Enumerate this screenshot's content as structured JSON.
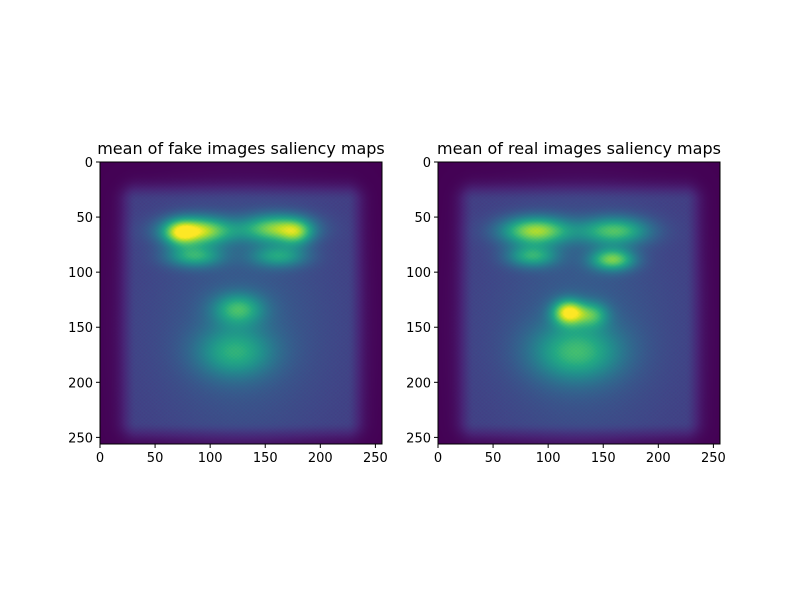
{
  "chart_data": [
    {
      "type": "heatmap",
      "title": "mean of fake images saliency maps",
      "colormap": "viridis",
      "xlim": [
        0,
        256
      ],
      "ylim": [
        256,
        0
      ],
      "xticks": [
        0,
        50,
        100,
        150,
        200,
        250
      ],
      "yticks": [
        0,
        50,
        100,
        150,
        200,
        250
      ],
      "value_range": [
        0,
        1
      ],
      "grid": false,
      "background_level": 0.18,
      "blobs": [
        {
          "x": 88,
          "y": 62,
          "sx": 22,
          "sy": 9,
          "v": 0.7
        },
        {
          "x": 72,
          "y": 64,
          "sx": 10,
          "sy": 8,
          "v": 0.35
        },
        {
          "x": 160,
          "y": 60,
          "sx": 22,
          "sy": 9,
          "v": 0.6
        },
        {
          "x": 178,
          "y": 64,
          "sx": 10,
          "sy": 8,
          "v": 0.3
        },
        {
          "x": 85,
          "y": 85,
          "sx": 18,
          "sy": 7,
          "v": 0.4
        },
        {
          "x": 162,
          "y": 85,
          "sx": 18,
          "sy": 7,
          "v": 0.35
        },
        {
          "x": 125,
          "y": 133,
          "sx": 16,
          "sy": 10,
          "v": 0.4
        },
        {
          "x": 122,
          "y": 172,
          "sx": 24,
          "sy": 16,
          "v": 0.35
        },
        {
          "x": 128,
          "y": 150,
          "sx": 55,
          "sy": 70,
          "v": 0.12
        }
      ]
    },
    {
      "type": "heatmap",
      "title": "mean of real images saliency maps",
      "colormap": "viridis",
      "xlim": [
        0,
        256
      ],
      "ylim": [
        256,
        0
      ],
      "xticks": [
        0,
        50,
        100,
        150,
        200,
        250
      ],
      "yticks": [
        0,
        50,
        100,
        150,
        200,
        250
      ],
      "value_range": [
        0,
        1
      ],
      "grid": false,
      "background_level": 0.18,
      "blobs": [
        {
          "x": 88,
          "y": 62,
          "sx": 22,
          "sy": 9,
          "v": 0.65
        },
        {
          "x": 160,
          "y": 62,
          "sx": 22,
          "sy": 9,
          "v": 0.5
        },
        {
          "x": 85,
          "y": 85,
          "sx": 16,
          "sy": 7,
          "v": 0.4
        },
        {
          "x": 158,
          "y": 88,
          "sx": 14,
          "sy": 7,
          "v": 0.55
        },
        {
          "x": 118,
          "y": 136,
          "sx": 10,
          "sy": 8,
          "v": 0.7
        },
        {
          "x": 140,
          "y": 138,
          "sx": 10,
          "sy": 8,
          "v": 0.35
        },
        {
          "x": 125,
          "y": 172,
          "sx": 28,
          "sy": 18,
          "v": 0.4
        },
        {
          "x": 128,
          "y": 150,
          "sx": 55,
          "sy": 70,
          "v": 0.12
        }
      ]
    }
  ]
}
